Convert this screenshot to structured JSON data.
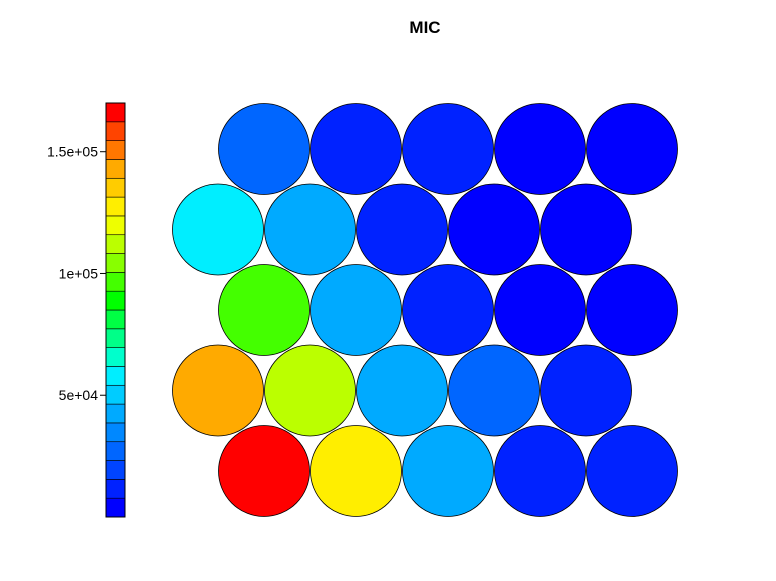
{
  "chart_data": {
    "type": "heatmap",
    "layout": "hexagonal-som",
    "title": "MIC",
    "grid": {
      "rows": 5,
      "cols": 5
    },
    "rows_top_to_bottom": [
      [
        28000,
        12000,
        12000,
        4000,
        4000
      ],
      [
        60000,
        45000,
        12000,
        4000,
        4000
      ],
      [
        95000,
        45000,
        12000,
        4000,
        4000
      ],
      [
        140000,
        115000,
        45000,
        28000,
        12000
      ],
      [
        170000,
        125000,
        45000,
        12000,
        12000
      ]
    ],
    "colorbar": {
      "min": 0,
      "max": 170000,
      "ticks": [
        {
          "value": 150000,
          "label": "1.5e+05"
        },
        {
          "value": 100000,
          "label": "1e+05"
        },
        {
          "value": 50000,
          "label": "5e+04"
        }
      ],
      "colors": [
        "#0000FF",
        "#0022FF",
        "#0044FF",
        "#0066FF",
        "#0088FF",
        "#00AAFF",
        "#00CCFF",
        "#00EEFF",
        "#00FFCC",
        "#00FF88",
        "#00FF44",
        "#00FF00",
        "#44FF00",
        "#88FF00",
        "#BBFF00",
        "#EEFF00",
        "#FFEE00",
        "#FFCC00",
        "#FFAA00",
        "#FF7700",
        "#FF4400",
        "#FF0000"
      ]
    }
  }
}
